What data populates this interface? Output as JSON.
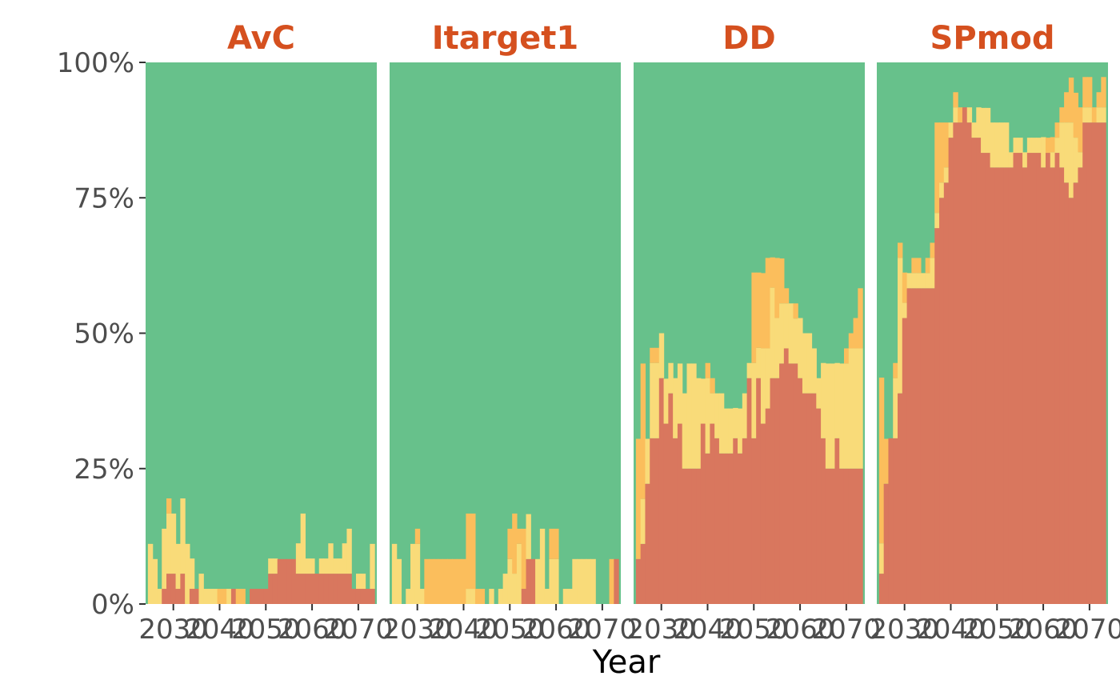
{
  "chart_data": {
    "type": "stacked-area",
    "xlabel": "Year",
    "ylabel": "",
    "ylim": [
      0,
      1
    ],
    "xlim": [
      2024,
      2074
    ],
    "yticks": [
      0,
      0.25,
      0.5,
      0.75,
      1
    ],
    "ytick_labels": [
      "0%",
      "25%",
      "50%",
      "75%",
      "100%"
    ],
    "xticks": [
      2030,
      2040,
      2050,
      2060,
      2070
    ],
    "xtick_labels": [
      "2030",
      "2040",
      "2050",
      "2060",
      "2070"
    ],
    "grid": false,
    "legend": "none",
    "colors": {
      "red": "#d9775e",
      "yellow": "#f9db79",
      "orange": "#fbbe5c",
      "green": "#67c18b",
      "title": "#d5501f"
    },
    "facets": [
      {
        "name": "AvC",
        "years": [
          2025,
          2026,
          2027,
          2028,
          2029,
          2030,
          2031,
          2032,
          2033,
          2034,
          2035,
          2036,
          2037,
          2038,
          2039,
          2040,
          2041,
          2042,
          2043,
          2044,
          2045,
          2046,
          2047,
          2048,
          2049,
          2050,
          2051,
          2052,
          2053,
          2054,
          2055,
          2056,
          2057,
          2058,
          2059,
          2060,
          2061,
          2062,
          2063,
          2064,
          2065,
          2066,
          2067,
          2068,
          2069,
          2070,
          2071,
          2072,
          2073
        ],
        "series": [
          {
            "key": "red",
            "values": [
              0,
              0,
              0,
              0.028,
              0.056,
              0.056,
              0.028,
              0.056,
              0,
              0.028,
              0.028,
              0,
              0,
              0,
              0,
              0,
              0,
              0,
              0.028,
              0,
              0,
              0,
              0.028,
              0.028,
              0.028,
              0.028,
              0.056,
              0.056,
              0.083,
              0.083,
              0.083,
              0.083,
              0.056,
              0.056,
              0.056,
              0.056,
              0.056,
              0.056,
              0.056,
              0.056,
              0.056,
              0.056,
              0.056,
              0.056,
              0.028,
              0.028,
              0.028,
              0.028,
              0.028
            ]
          },
          {
            "key": "yellow",
            "values": [
              0.111,
              0.083,
              0.028,
              0.111,
              0.111,
              0.111,
              0.083,
              0.139,
              0.111,
              0.056,
              0,
              0.056,
              0.028,
              0.028,
              0.028,
              0,
              0,
              0.028,
              0,
              0,
              0,
              0,
              0,
              0,
              0,
              0,
              0.028,
              0.028,
              0,
              0,
              0,
              0,
              0.056,
              0.111,
              0.028,
              0.028,
              0,
              0.028,
              0.028,
              0.056,
              0.028,
              0.028,
              0.056,
              0.083,
              0,
              0.028,
              0.028,
              0,
              0.083
            ]
          },
          {
            "key": "orange",
            "values": [
              0,
              0,
              0,
              0,
              0.028,
              0,
              0,
              0,
              0,
              0,
              0,
              0,
              0,
              0,
              0,
              0.028,
              0.028,
              0,
              0,
              0.028,
              0.028,
              0,
              0,
              0,
              0,
              0,
              0,
              0,
              0,
              0,
              0,
              0,
              0,
              0,
              0,
              0,
              0,
              0,
              0,
              0,
              0,
              0,
              0,
              0,
              0,
              0,
              0,
              0,
              0
            ]
          }
        ]
      },
      {
        "name": "Itarget1",
        "years": [
          2025,
          2026,
          2027,
          2028,
          2029,
          2030,
          2031,
          2032,
          2033,
          2034,
          2035,
          2036,
          2037,
          2038,
          2039,
          2040,
          2041,
          2042,
          2043,
          2044,
          2045,
          2046,
          2047,
          2048,
          2049,
          2050,
          2051,
          2052,
          2053,
          2054,
          2055,
          2056,
          2057,
          2058,
          2059,
          2060,
          2061,
          2062,
          2063,
          2064,
          2065,
          2066,
          2067,
          2068,
          2069,
          2070,
          2071,
          2072,
          2073
        ],
        "series": [
          {
            "key": "red",
            "values": [
              0,
              0,
              0,
              0,
              0,
              0,
              0,
              0,
              0,
              0,
              0,
              0,
              0,
              0,
              0,
              0,
              0,
              0,
              0,
              0,
              0,
              0,
              0,
              0,
              0,
              0,
              0,
              0,
              0.028,
              0.083,
              0.083,
              0,
              0,
              0,
              0,
              0,
              0,
              0,
              0,
              0,
              0,
              0,
              0,
              0,
              0,
              0,
              0,
              0,
              0.083
            ]
          },
          {
            "key": "yellow",
            "values": [
              0.111,
              0.083,
              0,
              0.028,
              0.111,
              0.111,
              0.028,
              0,
              0,
              0,
              0,
              0,
              0,
              0,
              0,
              0,
              0.028,
              0.028,
              0,
              0,
              0,
              0.028,
              0,
              0.028,
              0.056,
              0.083,
              0.056,
              0.111,
              0,
              0.083,
              0,
              0.083,
              0.139,
              0.028,
              0.083,
              0.083,
              0,
              0.028,
              0.028,
              0.083,
              0.083,
              0.083,
              0.083,
              0.083,
              0,
              0,
              0,
              0,
              0
            ]
          },
          {
            "key": "orange",
            "values": [
              0,
              0,
              0,
              0,
              0,
              0.028,
              0,
              0.083,
              0.083,
              0.083,
              0.083,
              0.083,
              0.083,
              0.083,
              0.083,
              0.083,
              0.139,
              0.139,
              0.028,
              0.028,
              0,
              0,
              0,
              0,
              0,
              0.056,
              0.111,
              0.028,
              0.111,
              0,
              0,
              0,
              0,
              0,
              0.056,
              0.056,
              0,
              0,
              0,
              0,
              0,
              0,
              0,
              0,
              0,
              0,
              0,
              0.083,
              0
            ]
          }
        ]
      },
      {
        "name": "DD",
        "years": [
          2025,
          2026,
          2027,
          2028,
          2029,
          2030,
          2031,
          2032,
          2033,
          2034,
          2035,
          2036,
          2037,
          2038,
          2039,
          2040,
          2041,
          2042,
          2043,
          2044,
          2045,
          2046,
          2047,
          2048,
          2049,
          2050,
          2051,
          2052,
          2053,
          2054,
          2055,
          2056,
          2057,
          2058,
          2059,
          2060,
          2061,
          2062,
          2063,
          2064,
          2065,
          2066,
          2067,
          2068,
          2069,
          2070,
          2071,
          2072,
          2073
        ],
        "series": [
          {
            "key": "red",
            "values": [
              0.083,
              0.111,
              0.222,
              0.306,
              0.306,
              0.417,
              0.333,
              0.389,
              0.306,
              0.333,
              0.25,
              0.25,
              0.25,
              0.25,
              0.333,
              0.278,
              0.333,
              0.306,
              0.278,
              0.278,
              0.278,
              0.306,
              0.278,
              0.306,
              0.417,
              0.306,
              0.417,
              0.333,
              0.361,
              0.417,
              0.417,
              0.444,
              0.472,
              0.444,
              0.444,
              0.417,
              0.389,
              0.389,
              0.389,
              0.361,
              0.306,
              0.25,
              0.25,
              0.306,
              0.25,
              0.25,
              0.25,
              0.25,
              0.25
            ]
          },
          {
            "key": "yellow",
            "values": [
              0,
              0.083,
              0.083,
              0.139,
              0.139,
              0.083,
              0.083,
              0.056,
              0.111,
              0.111,
              0.139,
              0.194,
              0.194,
              0.167,
              0.083,
              0.139,
              0.056,
              0.083,
              0.111,
              0.083,
              0.083,
              0.056,
              0.083,
              0.083,
              0.028,
              0.139,
              0.056,
              0.139,
              0.111,
              0.167,
              0.111,
              0.111,
              0.083,
              0.111,
              0.083,
              0.111,
              0.111,
              0.111,
              0.083,
              0.056,
              0.139,
              0.194,
              0.194,
              0.139,
              0.194,
              0.194,
              0.222,
              0.222,
              0.222
            ]
          },
          {
            "key": "orange",
            "values": [
              0.222,
              0.25,
              0,
              0.028,
              0.028,
              0,
              0,
              0,
              0,
              0,
              0,
              0,
              0,
              0,
              0,
              0.028,
              0.028,
              0,
              0,
              0,
              0,
              0,
              0,
              0,
              0,
              0.167,
              0.139,
              0.139,
              0.167,
              0.056,
              0.111,
              0.083,
              0.028,
              0,
              0.028,
              0,
              0,
              0,
              0,
              0,
              0,
              0,
              0,
              0,
              0,
              0.028,
              0.028,
              0.056,
              0.111
            ]
          }
        ]
      },
      {
        "name": "SPmod",
        "years": [
          2025,
          2026,
          2027,
          2028,
          2029,
          2030,
          2031,
          2032,
          2033,
          2034,
          2035,
          2036,
          2037,
          2038,
          2039,
          2040,
          2041,
          2042,
          2043,
          2044,
          2045,
          2046,
          2047,
          2048,
          2049,
          2050,
          2051,
          2052,
          2053,
          2054,
          2055,
          2056,
          2057,
          2058,
          2059,
          2060,
          2061,
          2062,
          2063,
          2064,
          2065,
          2066,
          2067,
          2068,
          2069,
          2070,
          2071,
          2072,
          2073
        ],
        "series": [
          {
            "key": "red",
            "values": [
              0.056,
              0.222,
              0.306,
              0.306,
              0.389,
              0.528,
              0.583,
              0.583,
              0.583,
              0.583,
              0.583,
              0.583,
              0.694,
              0.75,
              0.778,
              0.861,
              0.889,
              0.889,
              0.917,
              0.889,
              0.861,
              0.861,
              0.833,
              0.833,
              0.806,
              0.806,
              0.806,
              0.806,
              0.806,
              0.833,
              0.833,
              0.806,
              0.833,
              0.833,
              0.833,
              0.806,
              0.833,
              0.806,
              0.833,
              0.806,
              0.778,
              0.75,
              0.778,
              0.806,
              0.889,
              0.889,
              0.889,
              0.889,
              0.889
            ]
          },
          {
            "key": "yellow",
            "values": [
              0.056,
              0,
              0,
              0.111,
              0.25,
              0.028,
              0.028,
              0.028,
              0.028,
              0.028,
              0.028,
              0.056,
              0.028,
              0.028,
              0.028,
              0.028,
              0.028,
              0,
              0,
              0.028,
              0.028,
              0.056,
              0.083,
              0.083,
              0.083,
              0.083,
              0.083,
              0.083,
              0.028,
              0.028,
              0.028,
              0.028,
              0.028,
              0.028,
              0.028,
              0.056,
              0,
              0.028,
              0.028,
              0.083,
              0.111,
              0.139,
              0.083,
              0.028,
              0.028,
              0.028,
              0,
              0.028,
              0.028
            ]
          },
          {
            "key": "orange",
            "values": [
              0.306,
              0.083,
              0,
              0.028,
              0.028,
              0.056,
              0,
              0.028,
              0.028,
              0,
              0.028,
              0.028,
              0.167,
              0.111,
              0.083,
              0,
              0.028,
              0.028,
              0,
              0,
              0,
              0,
              0,
              0,
              0,
              0,
              0,
              0,
              0,
              0,
              0,
              0,
              0,
              0,
              0,
              0,
              0.028,
              0.028,
              0.028,
              0.028,
              0.056,
              0.083,
              0.083,
              0.083,
              0.056,
              0.056,
              0.028,
              0.028,
              0.056
            ]
          }
        ]
      }
    ]
  }
}
